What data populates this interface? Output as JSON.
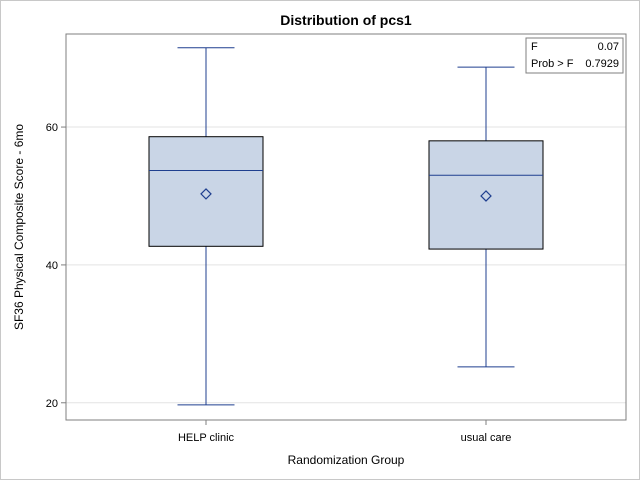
{
  "chart_data": {
    "type": "box",
    "title": "Distribution of pcs1",
    "xlabel": "Randomization Group",
    "ylabel": "SF36 Physical Composite Score - 6mo",
    "ylim": [
      17.5,
      73.5
    ],
    "yticks": [
      20,
      40,
      60
    ],
    "grid": true,
    "categories": [
      "HELP clinic",
      "usual care"
    ],
    "boxes": [
      {
        "category": "HELP clinic",
        "min": 19.7,
        "q1": 42.7,
        "median": 53.7,
        "q3": 58.6,
        "max": 71.5,
        "mean": 50.3
      },
      {
        "category": "usual care",
        "min": 25.2,
        "q1": 42.3,
        "median": 53.0,
        "q3": 58.0,
        "max": 68.7,
        "mean": 50.0
      }
    ],
    "inset": {
      "position": "top-right",
      "rows": [
        {
          "label": "F",
          "value": "0.07"
        },
        {
          "label": "Prob > F",
          "value": "0.7929"
        }
      ]
    }
  },
  "colors": {
    "box_fill": "#c9d5e6",
    "box_outline": "#000000",
    "median_line": "#1f3f8f",
    "whisker": "#1f3f8f",
    "mean_marker": "#1f3f8f",
    "gridline": "#e3e3e3",
    "axis": "#7f7f7f"
  }
}
